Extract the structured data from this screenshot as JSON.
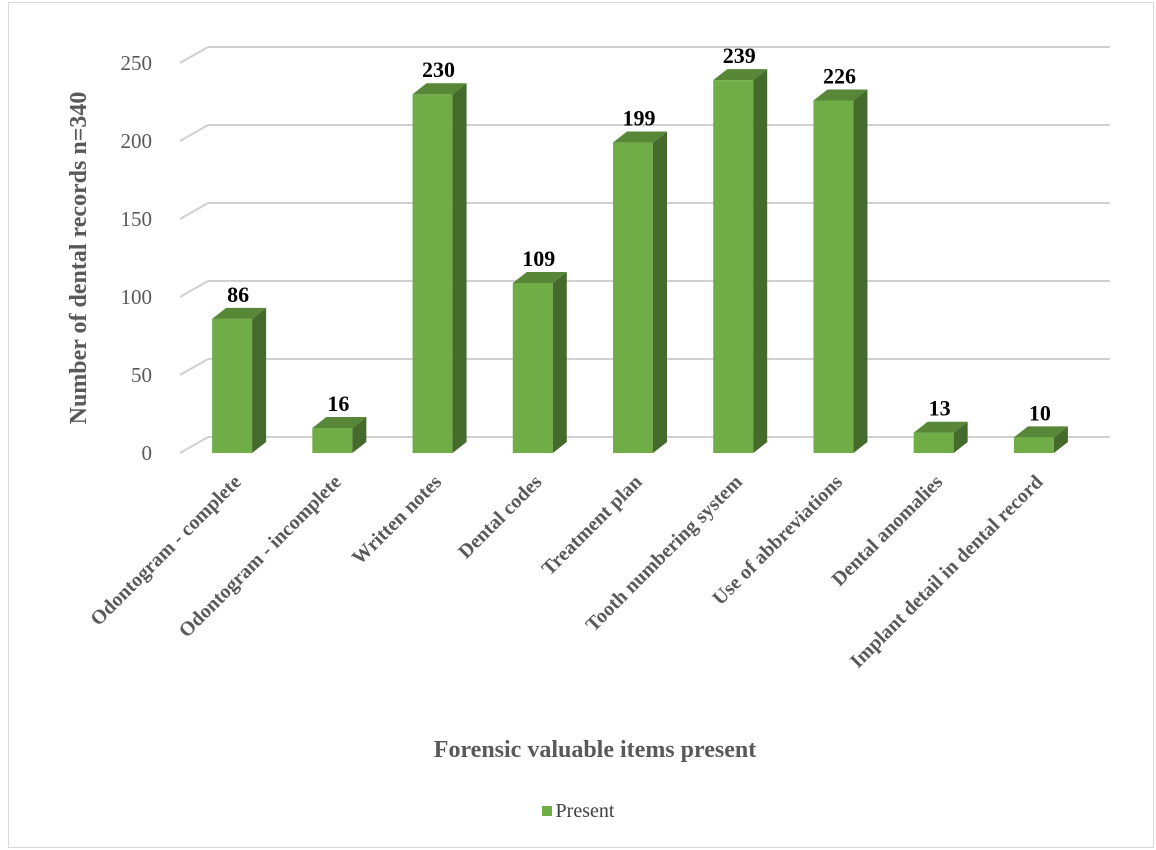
{
  "chart_data": {
    "type": "bar",
    "style": "3d-column",
    "title": "",
    "xlabel": "Forensic valuable items present",
    "ylabel": "Number of dental records n=340",
    "ylim": [
      0,
      250
    ],
    "yticks": [
      "0",
      "50",
      "100",
      "150",
      "200",
      "250"
    ],
    "grid": true,
    "legend_position": "bottom",
    "categories": [
      "Odontogram - complete",
      "Odontogram - incomplete",
      "Written notes",
      "Dental codes",
      "Treatment plan",
      "Tooth numbering system",
      "Use of abbreviations",
      "Dental anomalies",
      "Implant detail in dental record"
    ],
    "series": [
      {
        "name": "Present",
        "color": "#70ad47",
        "values": [
          86,
          16,
          230,
          109,
          199,
          239,
          226,
          13,
          10
        ],
        "data_labels": [
          "86",
          "16",
          "230",
          "109",
          "199",
          "239",
          "226",
          "13",
          "10"
        ]
      }
    ]
  }
}
